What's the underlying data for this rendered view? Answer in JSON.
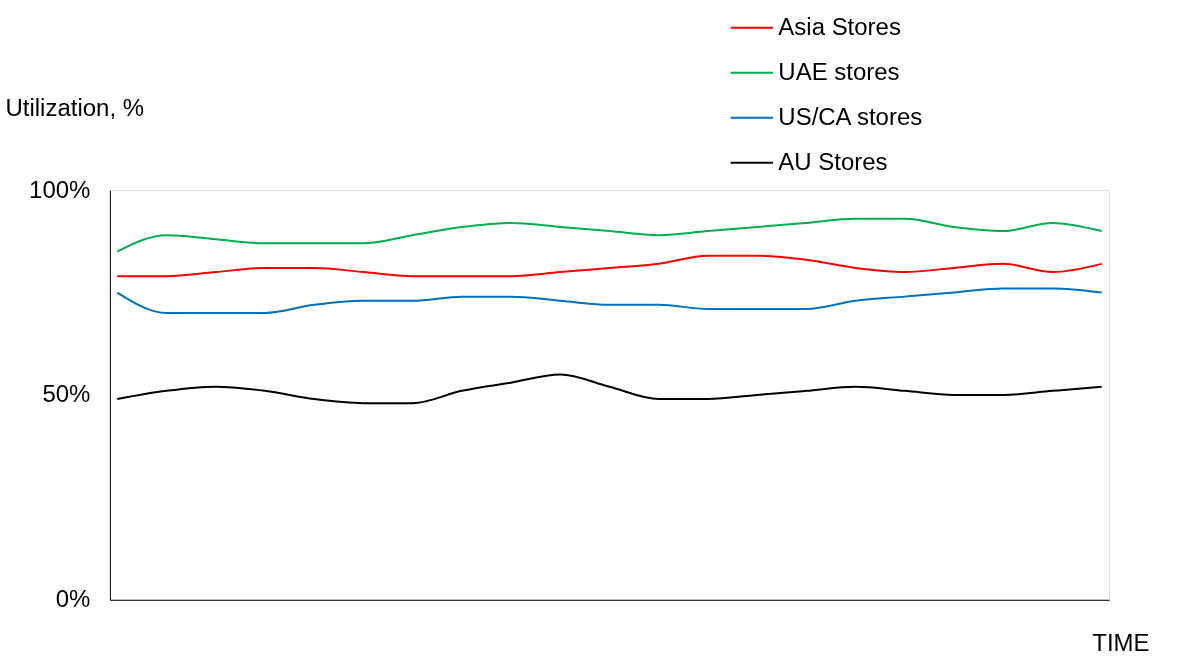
{
  "chart_data": {
    "type": "line",
    "xlabel": "TIME",
    "ylabel": "Utilization, %",
    "categories": [
      null,
      null,
      null,
      null,
      null,
      null,
      null,
      null,
      null,
      null,
      null,
      null,
      null,
      null,
      null,
      null,
      null,
      null,
      null,
      null,
      null
    ],
    "ylim": [
      0,
      100
    ],
    "yticks": [
      {
        "value": 0,
        "label": "0%"
      },
      {
        "value": 50,
        "label": "50%"
      },
      {
        "value": 100,
        "label": "100%"
      }
    ],
    "grid": false,
    "legend": "top right",
    "marker": "none",
    "line_style": "solid",
    "series": [
      {
        "name": "Asia Stores",
        "color": "#ff0000",
        "values": [
          79,
          79,
          80,
          81,
          81,
          80,
          79,
          79,
          79,
          80,
          81,
          82,
          84,
          84,
          83,
          81,
          80,
          81,
          82,
          80,
          82
        ]
      },
      {
        "name": "UAE stores",
        "color": "#00b050",
        "values": [
          85,
          89,
          88,
          87,
          87,
          87,
          89,
          91,
          92,
          91,
          90,
          89,
          90,
          91,
          92,
          93,
          93,
          91,
          90,
          92,
          90
        ]
      },
      {
        "name": "US/CA stores",
        "color": "#0070c0",
        "values": [
          75,
          70,
          70,
          70,
          72,
          73,
          73,
          74,
          74,
          73,
          72,
          72,
          71,
          71,
          71,
          73,
          74,
          75,
          76,
          76,
          75
        ]
      },
      {
        "name": "AU Stores",
        "color": "#000000",
        "values": [
          49,
          51,
          52,
          51,
          49,
          48,
          48,
          51,
          53,
          55,
          52,
          49,
          49,
          50,
          51,
          52,
          51,
          50,
          50,
          51,
          52
        ]
      }
    ]
  }
}
